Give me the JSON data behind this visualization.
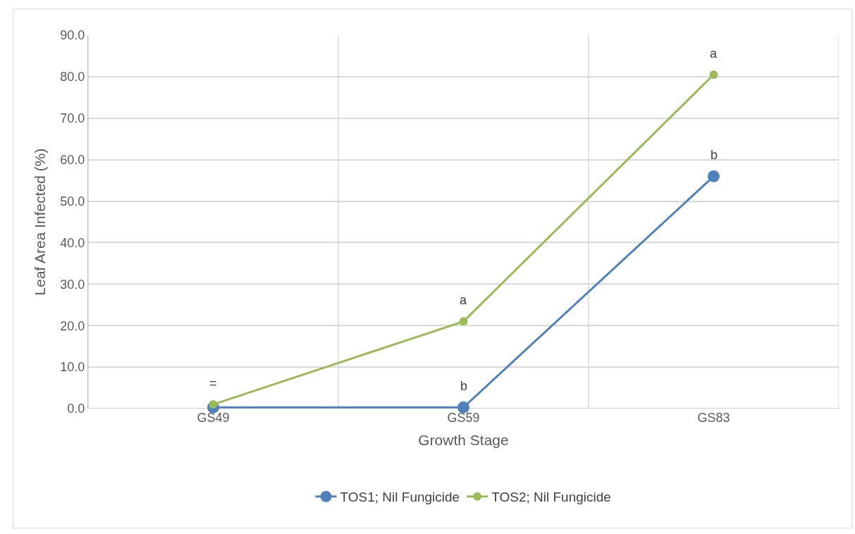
{
  "chart_data": {
    "type": "line",
    "xlabel": "Growth Stage",
    "ylabel": "Leaf Area Infected (%)",
    "categories": [
      "GS49",
      "GS59",
      "GS83"
    ],
    "series": [
      {
        "name": "TOS1; Nil Fungicide",
        "color": "#4f81bd",
        "values": [
          0.3,
          0.3,
          56.0
        ]
      },
      {
        "name": "TOS2; Nil Fungicide",
        "color": "#9bbb59",
        "values": [
          1.0,
          21.0,
          80.5
        ]
      }
    ],
    "ylim": [
      0,
      90
    ],
    "yticks": [
      {
        "value": 0,
        "label": "0.0"
      },
      {
        "value": 10,
        "label": "10.0"
      },
      {
        "value": 20,
        "label": "20.0"
      },
      {
        "value": 30,
        "label": "30.0"
      },
      {
        "value": 40,
        "label": "40.0"
      },
      {
        "value": 50,
        "label": "50.0"
      },
      {
        "value": 60,
        "label": "60.0"
      },
      {
        "value": 70,
        "label": "70.0"
      },
      {
        "value": 80,
        "label": "80.0"
      },
      {
        "value": 90,
        "label": "90.0"
      }
    ],
    "annotations": [
      {
        "text": "=",
        "x": "GS49",
        "y": 1.0
      },
      {
        "text": "a",
        "x": "GS59",
        "y": 21.0
      },
      {
        "text": "b",
        "x": "GS59",
        "y": 0.3
      },
      {
        "text": "a",
        "x": "GS83",
        "y": 80.5
      },
      {
        "text": "b",
        "x": "GS83",
        "y": 56.0
      }
    ],
    "grid": true,
    "legend": "bottom",
    "marker": "circle",
    "line_style": "solid"
  }
}
